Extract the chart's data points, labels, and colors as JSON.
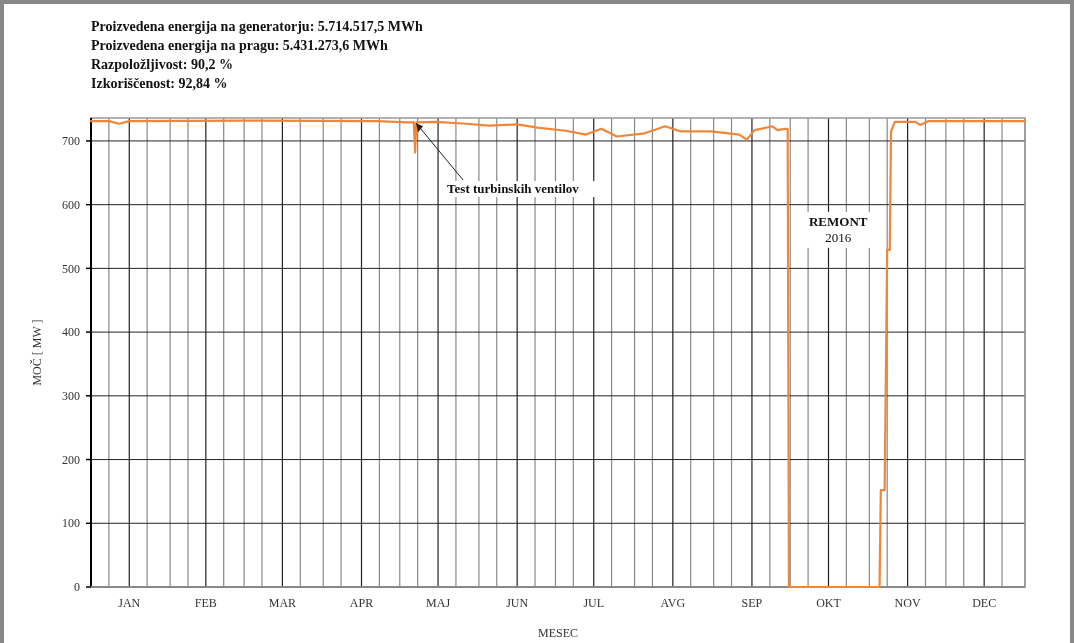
{
  "chart_data": {
    "type": "line",
    "title": "Proizvedena energija na generatorju:  5.714.517,5 MWh",
    "annotations": [
      "Proizvedena energija na pragu:  5.431.273,6 MWh",
      "Razpoložljivost:  90,2 %",
      "Izkoriščenost:  92,84 %",
      {
        "text": "Test turbinskih ventilov",
        "x": "2016-05-07",
        "y": 731
      },
      "REMONT\n2016"
    ],
    "xlabel": "MESEC",
    "ylabel": "MOČ [ MW ]",
    "series": [
      {
        "color": "#f0863a",
        "x": [
          "2016-01-01",
          "2016-01-08",
          "2016-01-12",
          "2016-01-16",
          "2016-03-02",
          "2016-04-22",
          "2016-05-04",
          "2016-05-06T12:00",
          "2016-05-07",
          "2016-05-07T12:00",
          "2016-05-15",
          "2016-05-27",
          "2016-06-05",
          "2016-06-16",
          "2016-06-24",
          "2016-07-05",
          "2016-07-13",
          "2016-07-19",
          "2016-07-25",
          "2016-08-05",
          "2016-08-13",
          "2016-08-19",
          "2016-08-31",
          "2016-09-11",
          "2016-09-14",
          "2016-09-17",
          "2016-09-24",
          "2016-09-26",
          "2016-09-29",
          "2016-09-30",
          "2016-09-30T12:00",
          "2016-11-05",
          "2016-11-05T12:00",
          "2016-11-07",
          "2016-11-08",
          "2016-11-09",
          "2016-11-09T12:00",
          "2016-11-11",
          "2016-11-19",
          "2016-11-21",
          "2016-11-24",
          "2017-01-01"
        ],
        "values": [
          731,
          731,
          727,
          731,
          732,
          731,
          729,
          729,
          682,
          729,
          730,
          727,
          724,
          726,
          721,
          716,
          710,
          719,
          707,
          712,
          723,
          715,
          715,
          710,
          702,
          717,
          723,
          717,
          719,
          719,
          0,
          0,
          152,
          152,
          529,
          529,
          715,
          730,
          730,
          725,
          731,
          731
        ]
      }
    ],
    "xlim": [
      "2016-01-01",
      "2017-01-01"
    ],
    "xticks": [
      {
        "value": "2016-01-01",
        "label": null
      },
      {
        "value": "2016-01-08",
        "label": null
      },
      {
        "value": "2016-01-16",
        "label": "JAN"
      },
      {
        "value": "2016-01-23",
        "label": null
      },
      {
        "value": "2016-02-01",
        "label": null
      },
      {
        "value": "2016-02-08",
        "label": null
      },
      {
        "value": "2016-02-15",
        "label": "FEB"
      },
      {
        "value": "2016-02-22",
        "label": null
      },
      {
        "value": "2016-03-01",
        "label": null
      },
      {
        "value": "2016-03-08",
        "label": null
      },
      {
        "value": "2016-03-16",
        "label": "MAR"
      },
      {
        "value": "2016-03-23",
        "label": null
      },
      {
        "value": "2016-04-01",
        "label": null
      },
      {
        "value": "2016-04-08",
        "label": null
      },
      {
        "value": "2016-04-16",
        "label": "APR"
      },
      {
        "value": "2016-04-23",
        "label": null
      },
      {
        "value": "2016-05-01",
        "label": null
      },
      {
        "value": "2016-05-08",
        "label": null
      },
      {
        "value": "2016-05-16",
        "label": "MAJ"
      },
      {
        "value": "2016-05-23",
        "label": null
      },
      {
        "value": "2016-06-01",
        "label": null
      },
      {
        "value": "2016-06-08",
        "label": null
      },
      {
        "value": "2016-06-16",
        "label": "JUN"
      },
      {
        "value": "2016-06-23",
        "label": null
      },
      {
        "value": "2016-07-01",
        "label": null
      },
      {
        "value": "2016-07-08",
        "label": null
      },
      {
        "value": "2016-07-16",
        "label": "JUL"
      },
      {
        "value": "2016-07-23",
        "label": null
      },
      {
        "value": "2016-08-01",
        "label": null
      },
      {
        "value": "2016-08-08",
        "label": null
      },
      {
        "value": "2016-08-16",
        "label": "AVG"
      },
      {
        "value": "2016-08-23",
        "label": null
      },
      {
        "value": "2016-09-01",
        "label": null
      },
      {
        "value": "2016-09-08",
        "label": null
      },
      {
        "value": "2016-09-16",
        "label": "SEP"
      },
      {
        "value": "2016-09-23",
        "label": null
      },
      {
        "value": "2016-10-01",
        "label": null
      },
      {
        "value": "2016-10-08",
        "label": null
      },
      {
        "value": "2016-10-16",
        "label": "OKT"
      },
      {
        "value": "2016-10-23",
        "label": null
      },
      {
        "value": "2016-11-01",
        "label": null
      },
      {
        "value": "2016-11-08",
        "label": null
      },
      {
        "value": "2016-11-16",
        "label": "NOV"
      },
      {
        "value": "2016-11-23",
        "label": null
      },
      {
        "value": "2016-12-01",
        "label": null
      },
      {
        "value": "2016-12-08",
        "label": null
      },
      {
        "value": "2016-12-16",
        "label": "DEC"
      },
      {
        "value": "2016-12-23",
        "label": null
      },
      {
        "value": "2017-01-01",
        "label": null
      }
    ],
    "ylim": [
      0,
      736
    ],
    "yticks": [
      0,
      100,
      200,
      300,
      400,
      500,
      600,
      700
    ],
    "grid": true,
    "marker": "none",
    "line_style": "solid"
  }
}
